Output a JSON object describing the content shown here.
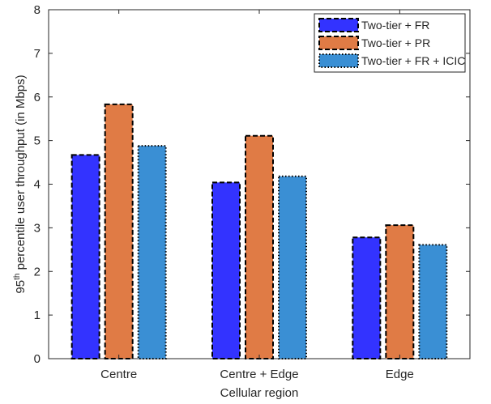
{
  "chart_data": {
    "type": "bar",
    "categories": [
      "Centre",
      "Centre + Edge",
      "Edge"
    ],
    "xlabel": "Cellular region",
    "ylabel": {
      "prefix": "95",
      "sup": "th",
      "rest": " percentile user throughput (in Mbps)"
    },
    "ylim": [
      0,
      8
    ],
    "yticks": [
      "0",
      "1",
      "2",
      "3",
      "4",
      "5",
      "6",
      "7",
      "8"
    ],
    "grid": false,
    "legend_position": "top-right",
    "series": [
      {
        "name": "Two-tier + FR",
        "values": [
          4.67,
          4.04,
          2.78
        ],
        "color": "#3333ff",
        "border": "dashed"
      },
      {
        "name": "Two-tier + PR",
        "values": [
          5.83,
          5.11,
          3.06
        ],
        "color": "#e07b45",
        "border": "dashed"
      },
      {
        "name": "Two-tier + FR + ICIC",
        "values": [
          4.88,
          4.18,
          2.61
        ],
        "color": "#3a8fd4",
        "border": "dotted"
      }
    ]
  }
}
